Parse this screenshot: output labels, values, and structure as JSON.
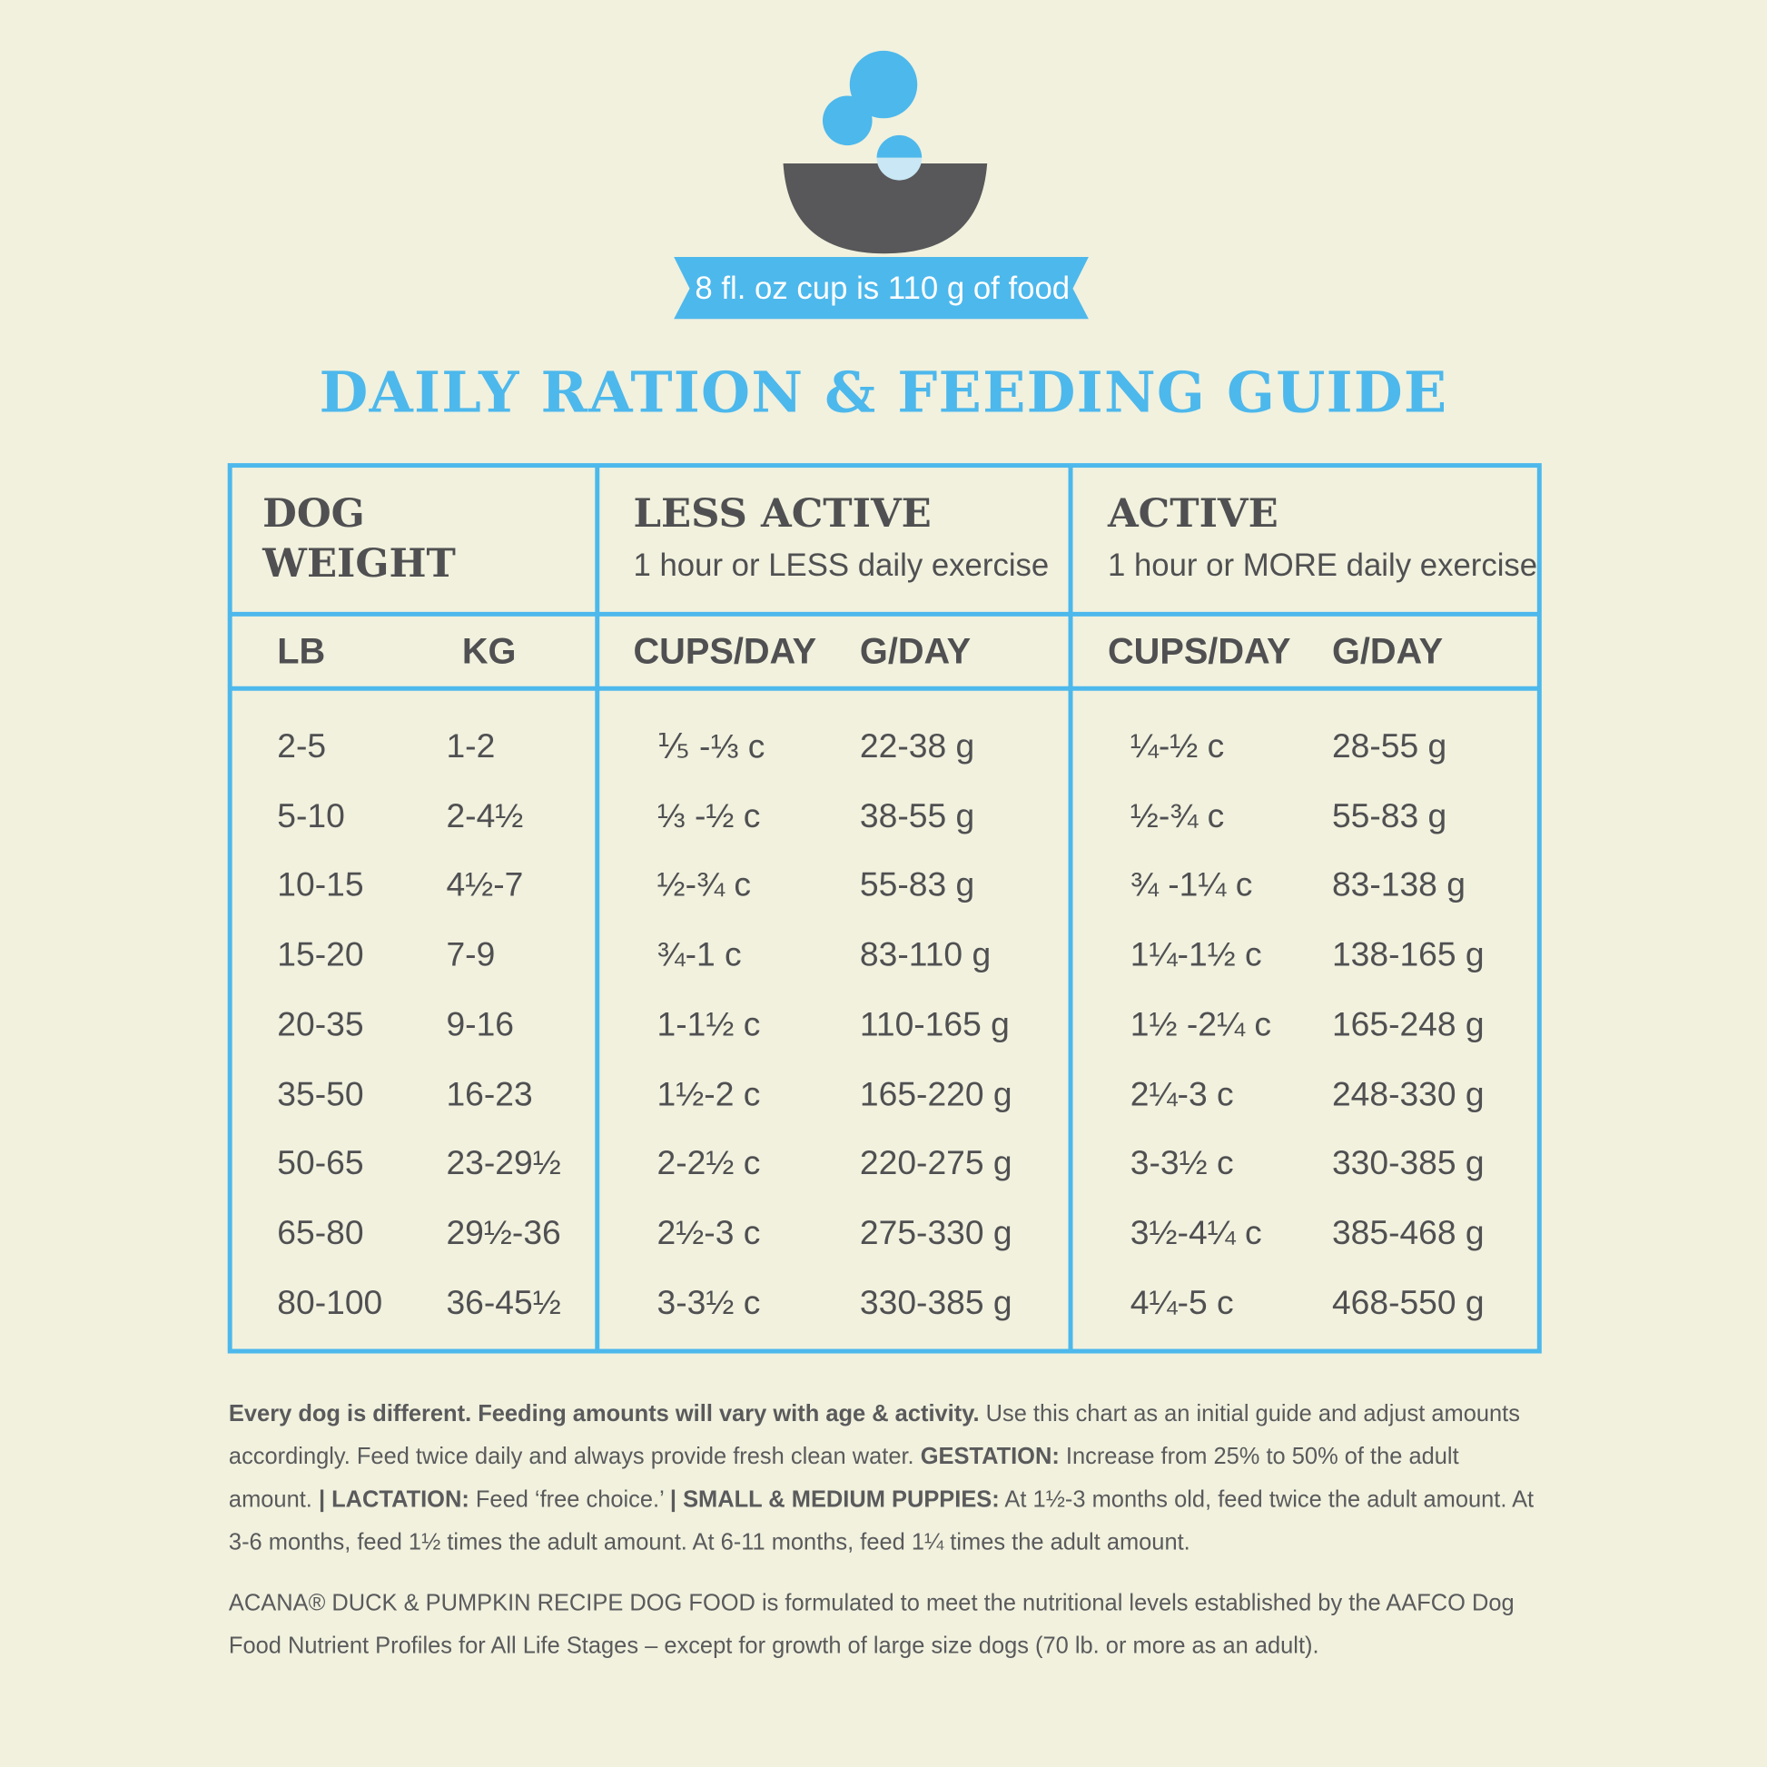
{
  "badge": "8 fl. oz cup is 110 g of food",
  "title": "DAILY RATION & FEEDING GUIDE",
  "table": {
    "groups": [
      {
        "title": [
          "DOG",
          "WEIGHT"
        ]
      },
      {
        "title": [
          "LESS ACTIVE"
        ],
        "subtitle": "1 hour or LESS daily exercise"
      },
      {
        "title": [
          "ACTIVE"
        ],
        "subtitle": "1 hour or MORE daily exercise"
      }
    ],
    "columns": [
      "LB",
      "KG",
      "CUPS/DAY",
      "G/DAY",
      "CUPS/DAY",
      "G/DAY"
    ],
    "rows": [
      [
        "2-5",
        "1-2",
        "⅕ -⅓ c",
        "22-38 g",
        "¼-½ c",
        "28-55 g"
      ],
      [
        "5-10",
        "2-4½",
        "⅓ -½ c",
        "38-55 g",
        "½-¾ c",
        "55-83 g"
      ],
      [
        "10-15",
        "4½-7",
        "½-¾ c",
        "55-83 g",
        "¾ -1¼ c",
        "83-138 g"
      ],
      [
        "15-20",
        "7-9",
        "¾-1 c",
        "83-110 g",
        "1¼-1½ c",
        "138-165 g"
      ],
      [
        "20-35",
        "9-16",
        "1-1½ c",
        "110-165 g",
        "1½ -2¼ c",
        "165-248 g"
      ],
      [
        "35-50",
        "16-23",
        "1½-2 c",
        "165-220 g",
        "2¼-3 c",
        "248-330 g"
      ],
      [
        "50-65",
        "23-29½",
        "2-2½ c",
        "220-275 g",
        "3-3½ c",
        "330-385 g"
      ],
      [
        "65-80",
        "29½-36",
        "2½-3 c",
        "275-330 g",
        "3½-4¼ c",
        "385-468 g"
      ],
      [
        "80-100",
        "36-45½",
        "3-3½ c",
        "330-385 g",
        "4¼-5 c",
        "468-550 g"
      ]
    ]
  },
  "notes": [
    {
      "runs": [
        {
          "text": "Every dog is different. Feeding amounts will vary with age & activity.",
          "bold": true
        },
        {
          "text": " Use this chart as an initial guide and adjust amounts accordingly. Feed twice daily and always provide fresh clean water. ",
          "bold": false
        },
        {
          "text": "GESTATION:",
          "bold": true
        },
        {
          "text": " Increase from 25% to 50% of the adult amount. ",
          "bold": false
        },
        {
          "text": "| LACTATION:",
          "bold": true
        },
        {
          "text": " Feed ‘free choice.’ ",
          "bold": false
        },
        {
          "text": "| SMALL & MEDIUM PUPPIES:",
          "bold": true
        },
        {
          "text": " At 1½-3 months old, feed twice the adult amount. At 3-6 months, feed 1½ times the adult amount. At 6-11 months, feed 1¼ times the adult amount.",
          "bold": false
        }
      ]
    },
    {
      "runs": [
        {
          "text": "ACANA® DUCK & PUMPKIN RECIPE DOG FOOD is formulated to meet the nutritional levels established by the AAFCO Dog Food Nutrient Profiles for All Life Stages – except for growth of large size dogs (70 lb. or more as an adult).",
          "bold": false
        }
      ]
    }
  ]
}
